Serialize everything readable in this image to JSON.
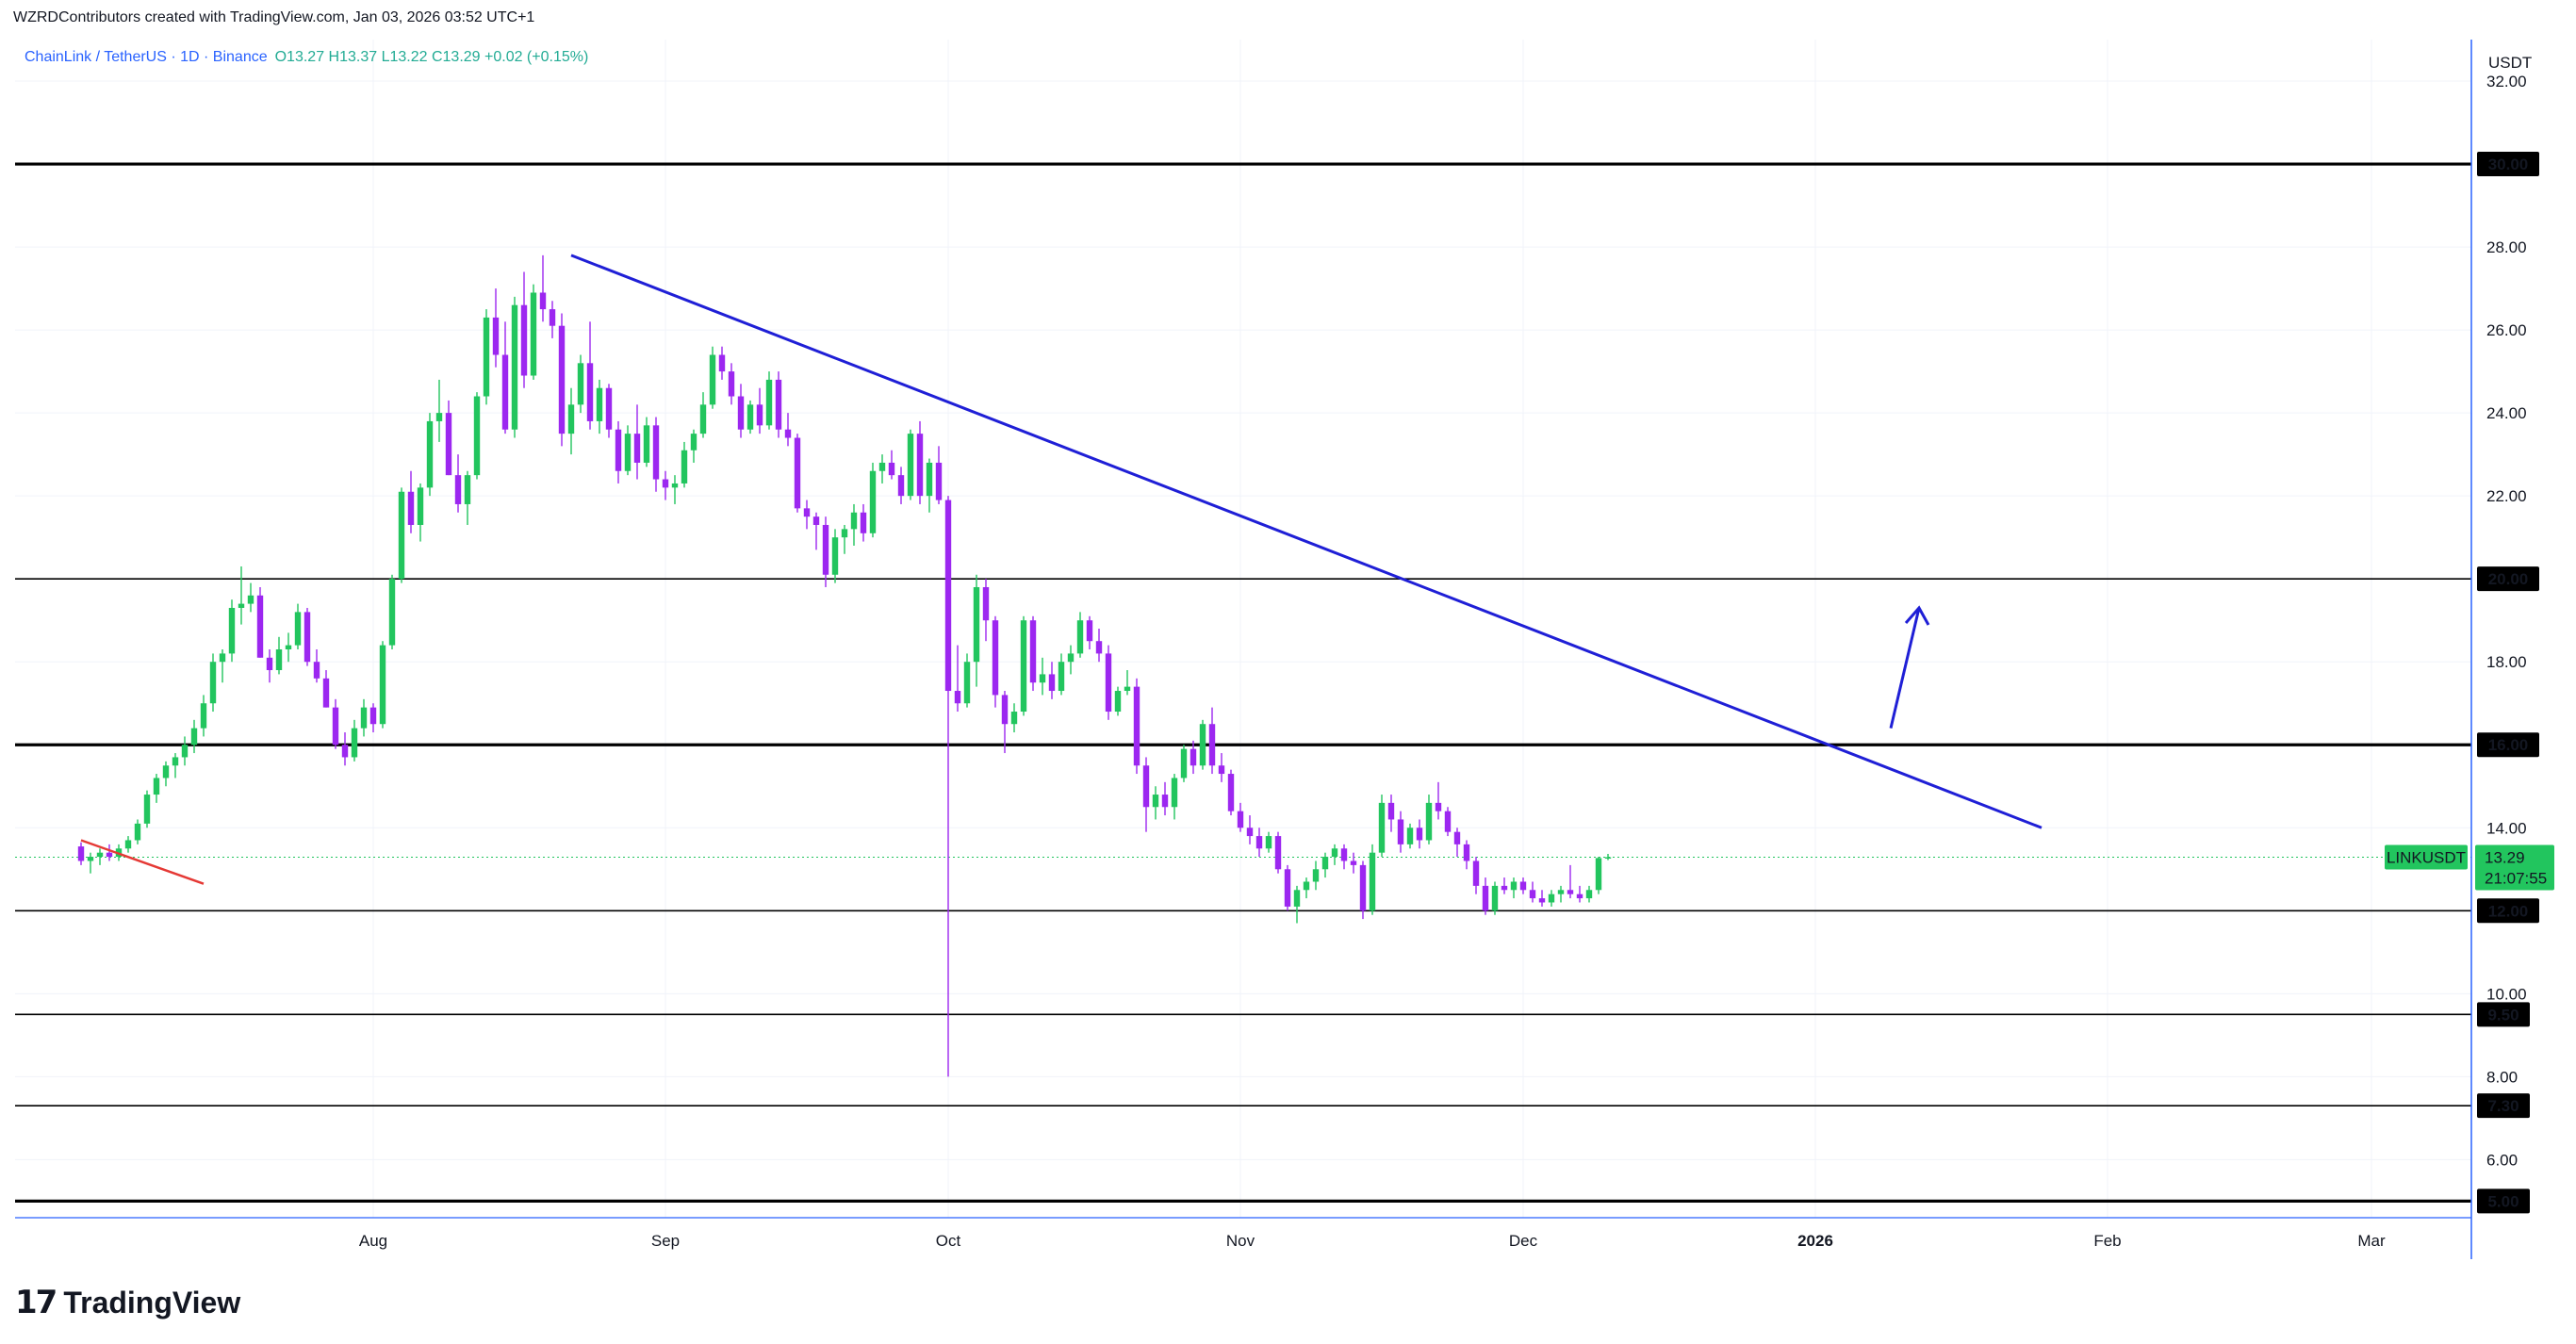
{
  "header": {
    "credit": "WZRDContributors created with TradingView.com, Jan 03, 2026 03:52 UTC+1"
  },
  "legend": {
    "symbol": "ChainLink / TetherUS · 1D · Binance",
    "ohlc": "O13.27  H13.37  L13.22  C13.29  +0.02 (+0.15%)"
  },
  "footer": {
    "brand": "TradingView",
    "brand_mark": "17"
  },
  "colors": {
    "bull": "#22c55e",
    "bear": "#9c27f0",
    "trendline": "#1f1fd6",
    "support_trendline": "#e53935",
    "level_line": "#000000",
    "price_tag_bg": "#22c55e"
  },
  "chart_data": {
    "type": "candlestick",
    "symbol": "LINKUSDT",
    "quote_currency": "USDT",
    "last_price": "13.29",
    "countdown": "21:07:55",
    "ylim": [
      4.6,
      33
    ],
    "y_ticks": [
      "32.00",
      "28.00",
      "26.00",
      "24.00",
      "22.00",
      "18.00",
      "14.00",
      "10.00",
      "8.00",
      "6.00"
    ],
    "x_ticks": [
      {
        "label": "Aug",
        "date": "2025-08-01"
      },
      {
        "label": "Sep",
        "date": "2025-09-01"
      },
      {
        "label": "Oct",
        "date": "2025-10-01"
      },
      {
        "label": "Nov",
        "date": "2025-11-01"
      },
      {
        "label": "Dec",
        "date": "2025-12-01"
      },
      {
        "label": "2026",
        "date": "2026-01-01"
      },
      {
        "label": "Feb",
        "date": "2026-02-01"
      },
      {
        "label": "Mar",
        "date": "2026-03-01"
      }
    ],
    "horizontal_levels": [
      {
        "price": 30.0,
        "label": "30.00",
        "weight": "thick"
      },
      {
        "price": 20.0,
        "label": "20.00",
        "weight": "thin"
      },
      {
        "price": 16.0,
        "label": "16.00",
        "weight": "thick"
      },
      {
        "price": 12.0,
        "label": "12.00",
        "weight": "thin"
      },
      {
        "price": 9.5,
        "label": "9.50",
        "weight": "thin"
      },
      {
        "price": 7.3,
        "label": "7.30",
        "weight": "thin"
      },
      {
        "price": 5.0,
        "label": "5.00",
        "weight": "thick"
      }
    ],
    "trendlines": [
      {
        "name": "descending resistance",
        "from": {
          "date": "2025-08-22",
          "price": 27.8
        },
        "to": {
          "date": "2026-01-25",
          "price": 14.0
        }
      },
      {
        "name": "short red line",
        "from": {
          "date": "2025-07-01",
          "price": 13.7
        },
        "to": {
          "date": "2025-07-14",
          "price": 12.65
        }
      }
    ],
    "arrow": {
      "from": {
        "date": "2026-01-09",
        "price": 16.4
      },
      "to": {
        "date": "2026-01-12",
        "price": 19.3
      }
    },
    "candles_start_date": "2025-07-01",
    "candles": [
      [
        13.55,
        13.65,
        13.1,
        13.2
      ],
      [
        13.2,
        13.4,
        12.9,
        13.3
      ],
      [
        13.3,
        13.5,
        13.1,
        13.4
      ],
      [
        13.4,
        13.6,
        13.2,
        13.3
      ],
      [
        13.3,
        13.6,
        13.2,
        13.5
      ],
      [
        13.5,
        13.8,
        13.4,
        13.7
      ],
      [
        13.7,
        14.2,
        13.6,
        14.1
      ],
      [
        14.1,
        14.9,
        14.0,
        14.8
      ],
      [
        14.8,
        15.3,
        14.6,
        15.2
      ],
      [
        15.2,
        15.6,
        15.0,
        15.5
      ],
      [
        15.5,
        15.8,
        15.2,
        15.7
      ],
      [
        15.7,
        16.2,
        15.5,
        16.0
      ],
      [
        16.0,
        16.6,
        15.8,
        16.4
      ],
      [
        16.4,
        17.2,
        16.2,
        17.0
      ],
      [
        17.0,
        18.2,
        16.8,
        18.0
      ],
      [
        18.0,
        18.3,
        17.5,
        18.2
      ],
      [
        18.2,
        19.5,
        18.0,
        19.3
      ],
      [
        19.3,
        20.3,
        18.9,
        19.4
      ],
      [
        19.4,
        19.9,
        19.2,
        19.6
      ],
      [
        19.6,
        19.8,
        18.1,
        18.1
      ],
      [
        18.1,
        18.3,
        17.5,
        17.8
      ],
      [
        17.8,
        18.6,
        17.7,
        18.3
      ],
      [
        18.3,
        18.7,
        18.0,
        18.4
      ],
      [
        18.4,
        19.4,
        18.3,
        19.2
      ],
      [
        19.2,
        19.3,
        17.9,
        18.0
      ],
      [
        18.0,
        18.3,
        17.5,
        17.6
      ],
      [
        17.6,
        17.8,
        16.9,
        16.9
      ],
      [
        16.9,
        17.1,
        15.9,
        16.0
      ],
      [
        16.0,
        16.3,
        15.5,
        15.7
      ],
      [
        15.7,
        16.6,
        15.6,
        16.4
      ],
      [
        16.4,
        17.1,
        16.2,
        16.9
      ],
      [
        16.9,
        17.0,
        16.3,
        16.5
      ],
      [
        16.5,
        18.5,
        16.4,
        18.4
      ],
      [
        18.4,
        20.1,
        18.3,
        20.0
      ],
      [
        20.0,
        22.2,
        19.9,
        22.1
      ],
      [
        22.1,
        22.6,
        21.1,
        21.3
      ],
      [
        21.3,
        22.3,
        20.9,
        22.2
      ],
      [
        22.2,
        24.0,
        22.0,
        23.8
      ],
      [
        23.8,
        24.8,
        23.3,
        24.0
      ],
      [
        24.0,
        24.3,
        22.5,
        22.5
      ],
      [
        22.5,
        23.0,
        21.6,
        21.8
      ],
      [
        21.8,
        22.6,
        21.3,
        22.5
      ],
      [
        22.5,
        24.5,
        22.4,
        24.4
      ],
      [
        24.4,
        26.5,
        24.2,
        26.3
      ],
      [
        26.3,
        27.0,
        25.1,
        25.4
      ],
      [
        25.4,
        26.2,
        23.5,
        23.6
      ],
      [
        23.6,
        26.8,
        23.4,
        26.6
      ],
      [
        26.6,
        27.4,
        24.6,
        24.9
      ],
      [
        24.9,
        27.1,
        24.8,
        26.9
      ],
      [
        26.9,
        27.8,
        26.2,
        26.5
      ],
      [
        26.5,
        26.7,
        25.8,
        26.1
      ],
      [
        26.1,
        26.4,
        23.2,
        23.5
      ],
      [
        23.5,
        24.6,
        23.0,
        24.2
      ],
      [
        24.2,
        25.4,
        24.0,
        25.2
      ],
      [
        25.2,
        26.2,
        23.6,
        23.8
      ],
      [
        23.8,
        24.8,
        23.5,
        24.6
      ],
      [
        24.6,
        24.7,
        23.4,
        23.6
      ],
      [
        23.6,
        23.8,
        22.3,
        22.6
      ],
      [
        22.6,
        23.7,
        22.5,
        23.5
      ],
      [
        23.5,
        24.2,
        22.4,
        22.8
      ],
      [
        22.8,
        23.9,
        22.7,
        23.7
      ],
      [
        23.7,
        23.9,
        22.1,
        22.4
      ],
      [
        22.4,
        22.6,
        21.9,
        22.2
      ],
      [
        22.2,
        22.5,
        21.8,
        22.3
      ],
      [
        22.3,
        23.3,
        22.2,
        23.1
      ],
      [
        23.1,
        23.6,
        22.8,
        23.5
      ],
      [
        23.5,
        24.5,
        23.4,
        24.2
      ],
      [
        24.2,
        25.6,
        24.1,
        25.4
      ],
      [
        25.4,
        25.6,
        24.8,
        25.0
      ],
      [
        25.0,
        25.2,
        24.2,
        24.4
      ],
      [
        24.4,
        24.7,
        23.4,
        23.6
      ],
      [
        23.6,
        24.3,
        23.5,
        24.2
      ],
      [
        24.2,
        24.6,
        23.5,
        23.7
      ],
      [
        23.7,
        25.0,
        23.6,
        24.8
      ],
      [
        24.8,
        25.0,
        23.4,
        23.6
      ],
      [
        23.6,
        24.0,
        23.2,
        23.4
      ],
      [
        23.4,
        23.5,
        21.6,
        21.7
      ],
      [
        21.7,
        21.9,
        21.2,
        21.5
      ],
      [
        21.5,
        21.6,
        20.7,
        21.3
      ],
      [
        21.3,
        21.5,
        19.8,
        20.1
      ],
      [
        20.1,
        21.2,
        19.9,
        21.0
      ],
      [
        21.0,
        21.3,
        20.6,
        21.2
      ],
      [
        21.2,
        21.8,
        20.8,
        21.6
      ],
      [
        21.6,
        21.8,
        20.9,
        21.1
      ],
      [
        21.1,
        22.8,
        21.0,
        22.6
      ],
      [
        22.6,
        23.0,
        22.3,
        22.8
      ],
      [
        22.8,
        23.1,
        22.4,
        22.5
      ],
      [
        22.5,
        22.7,
        21.8,
        22.0
      ],
      [
        22.0,
        23.6,
        21.9,
        23.5
      ],
      [
        23.5,
        23.8,
        21.8,
        22.0
      ],
      [
        22.0,
        22.9,
        21.6,
        22.8
      ],
      [
        22.8,
        23.2,
        21.8,
        21.9
      ],
      [
        21.9,
        22.0,
        8.0,
        17.3
      ],
      [
        17.3,
        18.4,
        16.8,
        17.0
      ],
      [
        17.0,
        18.2,
        16.9,
        18.0
      ],
      [
        18.0,
        20.1,
        17.4,
        19.8
      ],
      [
        19.8,
        20.0,
        18.5,
        19.0
      ],
      [
        19.0,
        19.1,
        16.9,
        17.2
      ],
      [
        17.2,
        17.3,
        15.8,
        16.5
      ],
      [
        16.5,
        17.0,
        16.3,
        16.8
      ],
      [
        16.8,
        19.1,
        16.7,
        19.0
      ],
      [
        19.0,
        19.1,
        17.3,
        17.5
      ],
      [
        17.5,
        18.1,
        17.2,
        17.7
      ],
      [
        17.7,
        18.0,
        17.1,
        17.3
      ],
      [
        17.3,
        18.2,
        17.2,
        18.0
      ],
      [
        18.0,
        18.4,
        17.7,
        18.2
      ],
      [
        18.2,
        19.2,
        18.1,
        19.0
      ],
      [
        19.0,
        19.1,
        18.3,
        18.5
      ],
      [
        18.5,
        18.8,
        18.0,
        18.2
      ],
      [
        18.2,
        18.4,
        16.6,
        16.8
      ],
      [
        16.8,
        17.4,
        16.7,
        17.3
      ],
      [
        17.3,
        17.8,
        17.2,
        17.4
      ],
      [
        17.4,
        17.6,
        15.3,
        15.5
      ],
      [
        15.5,
        15.7,
        13.9,
        14.5
      ],
      [
        14.5,
        15.0,
        14.2,
        14.8
      ],
      [
        14.8,
        15.1,
        14.3,
        14.5
      ],
      [
        14.5,
        15.3,
        14.2,
        15.2
      ],
      [
        15.2,
        16.0,
        15.1,
        15.9
      ],
      [
        15.9,
        16.1,
        15.3,
        15.5
      ],
      [
        15.5,
        16.6,
        15.4,
        16.5
      ],
      [
        16.5,
        16.9,
        15.3,
        15.5
      ],
      [
        15.5,
        15.8,
        15.1,
        15.3
      ],
      [
        15.3,
        15.4,
        14.3,
        14.4
      ],
      [
        14.4,
        14.6,
        13.9,
        14.0
      ],
      [
        14.0,
        14.3,
        13.6,
        13.8
      ],
      [
        13.8,
        14.0,
        13.3,
        13.5
      ],
      [
        13.5,
        13.9,
        13.4,
        13.8
      ],
      [
        13.8,
        13.9,
        12.9,
        13.0
      ],
      [
        13.0,
        13.1,
        12.0,
        12.1
      ],
      [
        12.1,
        12.6,
        11.7,
        12.5
      ],
      [
        12.5,
        12.8,
        12.3,
        12.7
      ],
      [
        12.7,
        13.2,
        12.5,
        13.0
      ],
      [
        13.0,
        13.4,
        12.8,
        13.3
      ],
      [
        13.3,
        13.6,
        13.1,
        13.5
      ],
      [
        13.5,
        13.6,
        13.0,
        13.2
      ],
      [
        13.2,
        13.4,
        12.9,
        13.1
      ],
      [
        13.1,
        13.2,
        11.8,
        12.0
      ],
      [
        12.0,
        13.6,
        11.9,
        13.4
      ],
      [
        13.4,
        14.8,
        13.3,
        14.6
      ],
      [
        14.6,
        14.8,
        13.9,
        14.2
      ],
      [
        14.2,
        14.4,
        13.4,
        13.6
      ],
      [
        13.6,
        14.1,
        13.5,
        14.0
      ],
      [
        14.0,
        14.2,
        13.5,
        13.7
      ],
      [
        13.7,
        14.8,
        13.6,
        14.6
      ],
      [
        14.6,
        15.1,
        14.2,
        14.4
      ],
      [
        14.4,
        14.5,
        13.8,
        13.9
      ],
      [
        13.9,
        14.0,
        13.3,
        13.6
      ],
      [
        13.6,
        13.7,
        13.0,
        13.2
      ],
      [
        13.2,
        13.3,
        12.4,
        12.6
      ],
      [
        12.6,
        12.8,
        11.9,
        12.0
      ],
      [
        12.0,
        12.7,
        11.9,
        12.6
      ],
      [
        12.6,
        12.8,
        12.4,
        12.5
      ],
      [
        12.5,
        12.8,
        12.3,
        12.7
      ],
      [
        12.7,
        12.8,
        12.4,
        12.5
      ],
      [
        12.5,
        12.7,
        12.2,
        12.3
      ],
      [
        12.3,
        12.5,
        12.1,
        12.2
      ],
      [
        12.2,
        12.5,
        12.1,
        12.4
      ],
      [
        12.4,
        12.6,
        12.2,
        12.5
      ],
      [
        12.5,
        13.1,
        12.3,
        12.4
      ],
      [
        12.4,
        12.6,
        12.2,
        12.3
      ],
      [
        12.3,
        12.6,
        12.2,
        12.5
      ],
      [
        12.5,
        13.3,
        12.4,
        13.27
      ],
      [
        13.27,
        13.37,
        13.22,
        13.29
      ]
    ]
  }
}
